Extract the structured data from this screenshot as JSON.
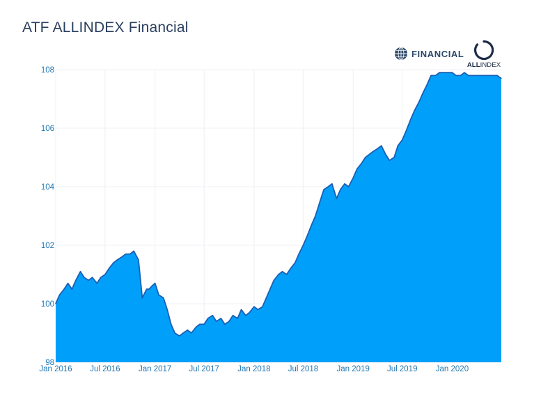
{
  "chart_data": {
    "type": "area",
    "title": "ATF ALLINDEX Financial",
    "xlabel": "",
    "ylabel": "",
    "xlim": [
      "2016-01-01",
      "2020-06-30"
    ],
    "ylim": [
      98,
      108
    ],
    "x_ticks": [
      "Jan 2016",
      "Jul 2016",
      "Jan 2017",
      "Jul 2017",
      "Jan 2018",
      "Jul 2018",
      "Jan 2019",
      "Jul 2019",
      "Jan 2020"
    ],
    "y_ticks": [
      "98",
      "100",
      "102",
      "104",
      "106",
      "108"
    ],
    "grid": true,
    "legend": "none",
    "line_color": "#1a5fb4",
    "fill_color": "#00a0fa",
    "series": [
      {
        "x": [
          "2016-01-01",
          "2016-01-15",
          "2016-02-01",
          "2016-02-15",
          "2016-03-01",
          "2016-03-15",
          "2016-04-01",
          "2016-04-15",
          "2016-05-01",
          "2016-05-15",
          "2016-06-01",
          "2016-06-15",
          "2016-07-01",
          "2016-07-15",
          "2016-08-01",
          "2016-08-15",
          "2016-09-01",
          "2016-09-15",
          "2016-10-01",
          "2016-10-15",
          "2016-11-01",
          "2016-11-15",
          "2016-12-01",
          "2016-12-10",
          "2016-12-20",
          "2017-01-01",
          "2017-01-15",
          "2017-02-01",
          "2017-02-15",
          "2017-03-01",
          "2017-03-15",
          "2017-04-01",
          "2017-04-15",
          "2017-05-01",
          "2017-05-15",
          "2017-06-01",
          "2017-06-15",
          "2017-07-01",
          "2017-07-15",
          "2017-08-01",
          "2017-08-15",
          "2017-09-01",
          "2017-09-15",
          "2017-10-01",
          "2017-10-15",
          "2017-11-01",
          "2017-11-15",
          "2017-12-01",
          "2017-12-15",
          "2018-01-01",
          "2018-01-15",
          "2018-02-01",
          "2018-02-15",
          "2018-03-01",
          "2018-03-15",
          "2018-04-01",
          "2018-04-15",
          "2018-05-01",
          "2018-05-15",
          "2018-06-01",
          "2018-06-15",
          "2018-07-01",
          "2018-07-15",
          "2018-08-01",
          "2018-08-15",
          "2018-09-01",
          "2018-09-15",
          "2018-10-01",
          "2018-10-15",
          "2018-11-01",
          "2018-11-15",
          "2018-12-01",
          "2018-12-15",
          "2019-01-01",
          "2019-01-15",
          "2019-02-01",
          "2019-02-15",
          "2019-03-01",
          "2019-03-15",
          "2019-04-01",
          "2019-04-15",
          "2019-05-01",
          "2019-05-15",
          "2019-06-01",
          "2019-06-15",
          "2019-07-01",
          "2019-07-15",
          "2019-08-01",
          "2019-08-15",
          "2019-09-01",
          "2019-09-15",
          "2019-10-01",
          "2019-10-15",
          "2019-11-01",
          "2019-11-15",
          "2019-12-01",
          "2019-12-15",
          "2020-01-01",
          "2020-01-15",
          "2020-02-01",
          "2020-02-15",
          "2020-03-01",
          "2020-03-15",
          "2020-04-01",
          "2020-04-15",
          "2020-05-01",
          "2020-05-15",
          "2020-06-01",
          "2020-06-15",
          "2020-06-30"
        ],
        "values": [
          100.0,
          100.3,
          100.5,
          100.7,
          100.5,
          100.8,
          101.1,
          100.9,
          100.8,
          100.9,
          100.7,
          100.9,
          101.0,
          101.2,
          101.4,
          101.5,
          101.6,
          101.7,
          101.7,
          101.8,
          101.5,
          100.2,
          100.5,
          100.5,
          100.6,
          100.7,
          100.3,
          100.2,
          99.8,
          99.3,
          99.0,
          98.9,
          99.0,
          99.1,
          99.0,
          99.2,
          99.3,
          99.3,
          99.5,
          99.6,
          99.4,
          99.5,
          99.3,
          99.4,
          99.6,
          99.5,
          99.8,
          99.6,
          99.7,
          99.9,
          99.8,
          99.9,
          100.2,
          100.5,
          100.8,
          101.0,
          101.1,
          101.0,
          101.2,
          101.4,
          101.7,
          102.0,
          102.3,
          102.7,
          103.0,
          103.5,
          103.9,
          104.0,
          104.1,
          103.6,
          103.9,
          104.1,
          104.0,
          104.3,
          104.6,
          104.8,
          105.0,
          105.1,
          105.2,
          105.3,
          105.4,
          105.1,
          104.9,
          105.0,
          105.4,
          105.6,
          105.9,
          106.3,
          106.6,
          106.9,
          107.2,
          107.5,
          107.8,
          107.8,
          107.9,
          107.9,
          107.9,
          107.9,
          107.8,
          107.8,
          107.9,
          107.8,
          107.8,
          107.8,
          107.8,
          107.8,
          107.8,
          107.8,
          107.8,
          107.7
        ]
      }
    ]
  },
  "logos": {
    "financial": "FINANCIAL",
    "allindex_bold": "ALL",
    "allindex_rest": "INDEX"
  }
}
